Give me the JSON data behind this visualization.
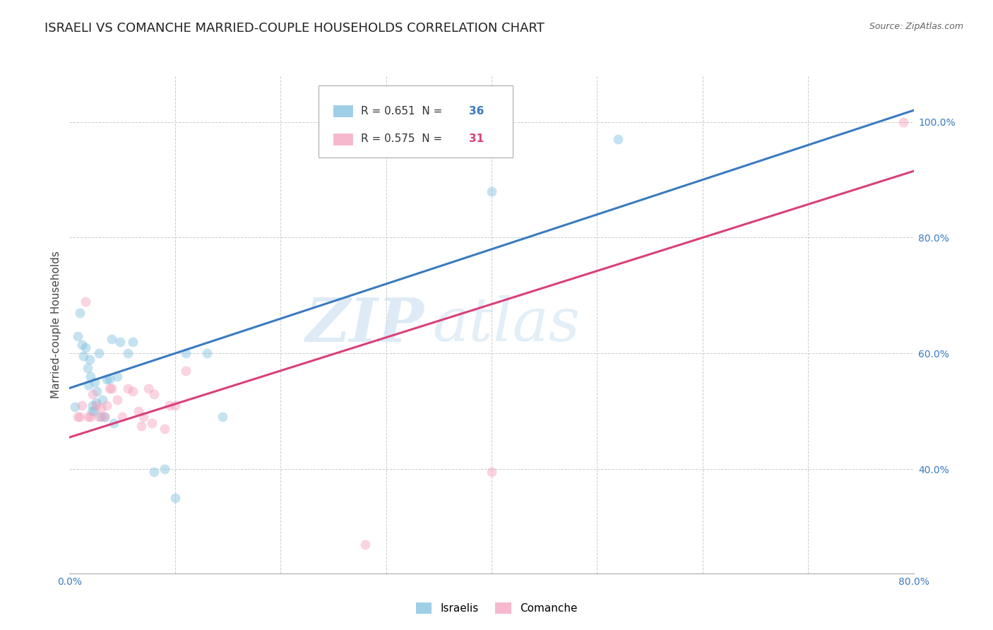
{
  "title": "ISRAELI VS COMANCHE MARRIED-COUPLE HOUSEHOLDS CORRELATION CHART",
  "source": "Source: ZipAtlas.com",
  "ylabel": "Married-couple Households",
  "xlim": [
    0.0,
    0.8
  ],
  "ylim": [
    0.22,
    1.08
  ],
  "x_ticks": [
    0.0,
    0.1,
    0.2,
    0.3,
    0.4,
    0.5,
    0.6,
    0.7,
    0.8
  ],
  "y_ticks": [
    0.4,
    0.6,
    0.8,
    1.0
  ],
  "y_tick_labels": [
    "40.0%",
    "60.0%",
    "80.0%",
    "100.0%"
  ],
  "israelis_color": "#7fbfdf",
  "comanche_color": "#f4a0bb",
  "line1_color": "#3a7bbf",
  "line2_color": "#d9407a",
  "watermark_zip": "ZIP",
  "watermark_atlas": "atlas",
  "israelis_x": [
    0.005,
    0.008,
    0.01,
    0.012,
    0.013,
    0.015,
    0.017,
    0.018,
    0.019,
    0.02,
    0.021,
    0.022,
    0.023,
    0.024,
    0.025,
    0.026,
    0.028,
    0.03,
    0.031,
    0.033,
    0.035,
    0.038,
    0.04,
    0.042,
    0.045,
    0.048,
    0.055,
    0.06,
    0.08,
    0.09,
    0.1,
    0.11,
    0.13,
    0.145,
    0.4,
    0.52
  ],
  "israelis_y": [
    0.508,
    0.63,
    0.67,
    0.615,
    0.595,
    0.61,
    0.575,
    0.545,
    0.59,
    0.56,
    0.5,
    0.51,
    0.5,
    0.55,
    0.515,
    0.535,
    0.6,
    0.49,
    0.52,
    0.49,
    0.555,
    0.555,
    0.625,
    0.48,
    0.56,
    0.62,
    0.6,
    0.62,
    0.395,
    0.4,
    0.35,
    0.6,
    0.6,
    0.49,
    0.88,
    0.97
  ],
  "comanche_x": [
    0.008,
    0.01,
    0.012,
    0.015,
    0.018,
    0.02,
    0.022,
    0.025,
    0.028,
    0.03,
    0.033,
    0.035,
    0.038,
    0.04,
    0.045,
    0.05,
    0.055,
    0.06,
    0.065,
    0.068,
    0.07,
    0.075,
    0.078,
    0.08,
    0.09,
    0.095,
    0.1,
    0.11,
    0.28,
    0.4,
    0.79
  ],
  "comanche_y": [
    0.49,
    0.49,
    0.51,
    0.69,
    0.49,
    0.49,
    0.53,
    0.51,
    0.49,
    0.505,
    0.49,
    0.51,
    0.54,
    0.54,
    0.52,
    0.49,
    0.54,
    0.535,
    0.5,
    0.475,
    0.49,
    0.54,
    0.48,
    0.53,
    0.47,
    0.51,
    0.51,
    0.57,
    0.27,
    0.395,
    1.0
  ],
  "line1_x": [
    0.0,
    0.8
  ],
  "line1_y": [
    0.54,
    1.02
  ],
  "line2_x": [
    0.0,
    0.8
  ],
  "line2_y": [
    0.455,
    0.915
  ],
  "marker_size": 100,
  "marker_alpha": 0.45,
  "grid_color": "#cccccc",
  "bg_color": "#ffffff",
  "title_fontsize": 13,
  "axis_label_fontsize": 11,
  "tick_fontsize": 10,
  "tick_color": "#3a7bbf",
  "legend_fontsize": 11,
  "source_fontsize": 9
}
